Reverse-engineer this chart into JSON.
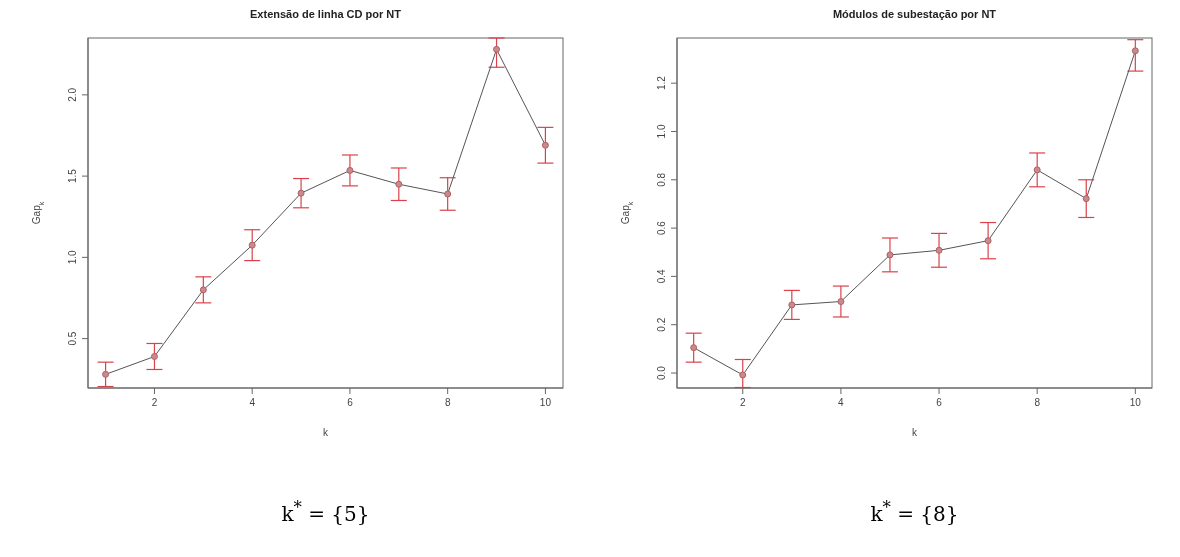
{
  "chart_data": [
    {
      "type": "line",
      "title": "Extensão de linha CD por NT",
      "xlabel": "k",
      "ylabel": "Gap$_{k}$",
      "x": [
        1,
        2,
        3,
        4,
        5,
        6,
        7,
        8,
        9,
        10
      ],
      "series": [
        {
          "color": "#555555",
          "values": [
            0.28,
            0.39,
            0.8,
            1.075,
            1.395,
            1.535,
            1.45,
            1.39,
            2.28,
            1.69
          ],
          "errors": [
            0.075,
            0.08,
            0.08,
            0.095,
            0.09,
            0.095,
            0.1,
            0.1,
            [
              2.17,
              2.35
            ],
            0.11
          ]
        }
      ],
      "xlim": [
        0.64,
        10.36
      ],
      "xticks": [
        2,
        4,
        6,
        8,
        10
      ],
      "ylim": [
        0.196,
        2.35
      ],
      "yticks": [
        0.5,
        {
          "value": 1,
          "label": "1.0"
        },
        1.5,
        {
          "value": 2,
          "label": "2.0"
        }
      ],
      "marker": "circle",
      "line_style": "solid",
      "grid": false,
      "legend": false,
      "annotations": [
        "k$^{*}$ = {5}"
      ]
    },
    {
      "type": "line",
      "title": "Módulos de subestação por NT",
      "xlabel": "k",
      "ylabel": "Gap$_{k}$",
      "x": [
        1,
        2,
        3,
        4,
        5,
        6,
        7,
        8,
        9,
        10
      ],
      "series": [
        {
          "color": "#555555",
          "values": [
            0.105,
            -0.008,
            0.282,
            0.296,
            0.489,
            0.508,
            0.548,
            0.841,
            0.722,
            1.334
          ],
          "errors": [
            0.06,
            [
              -0.06,
              0.056
            ],
            0.06,
            0.064,
            0.07,
            0.07,
            0.075,
            0.07,
            0.078,
            [
              1.25,
              1.38
            ]
          ]
        }
      ],
      "xlim": [
        0.66,
        10.34
      ],
      "xticks": [
        2,
        4,
        6,
        8,
        10
      ],
      "ylim": [
        -0.062,
        1.387
      ],
      "yticks": [
        {
          "value": 0,
          "label": "0.0"
        },
        0.2,
        0.4,
        0.6,
        0.8,
        {
          "value": 1,
          "label": "1.0"
        },
        1.2
      ],
      "marker": "circle",
      "line_style": "solid",
      "grid": false,
      "legend": false,
      "annotations": [
        "k$^{*}$ = {8}"
      ]
    }
  ]
}
